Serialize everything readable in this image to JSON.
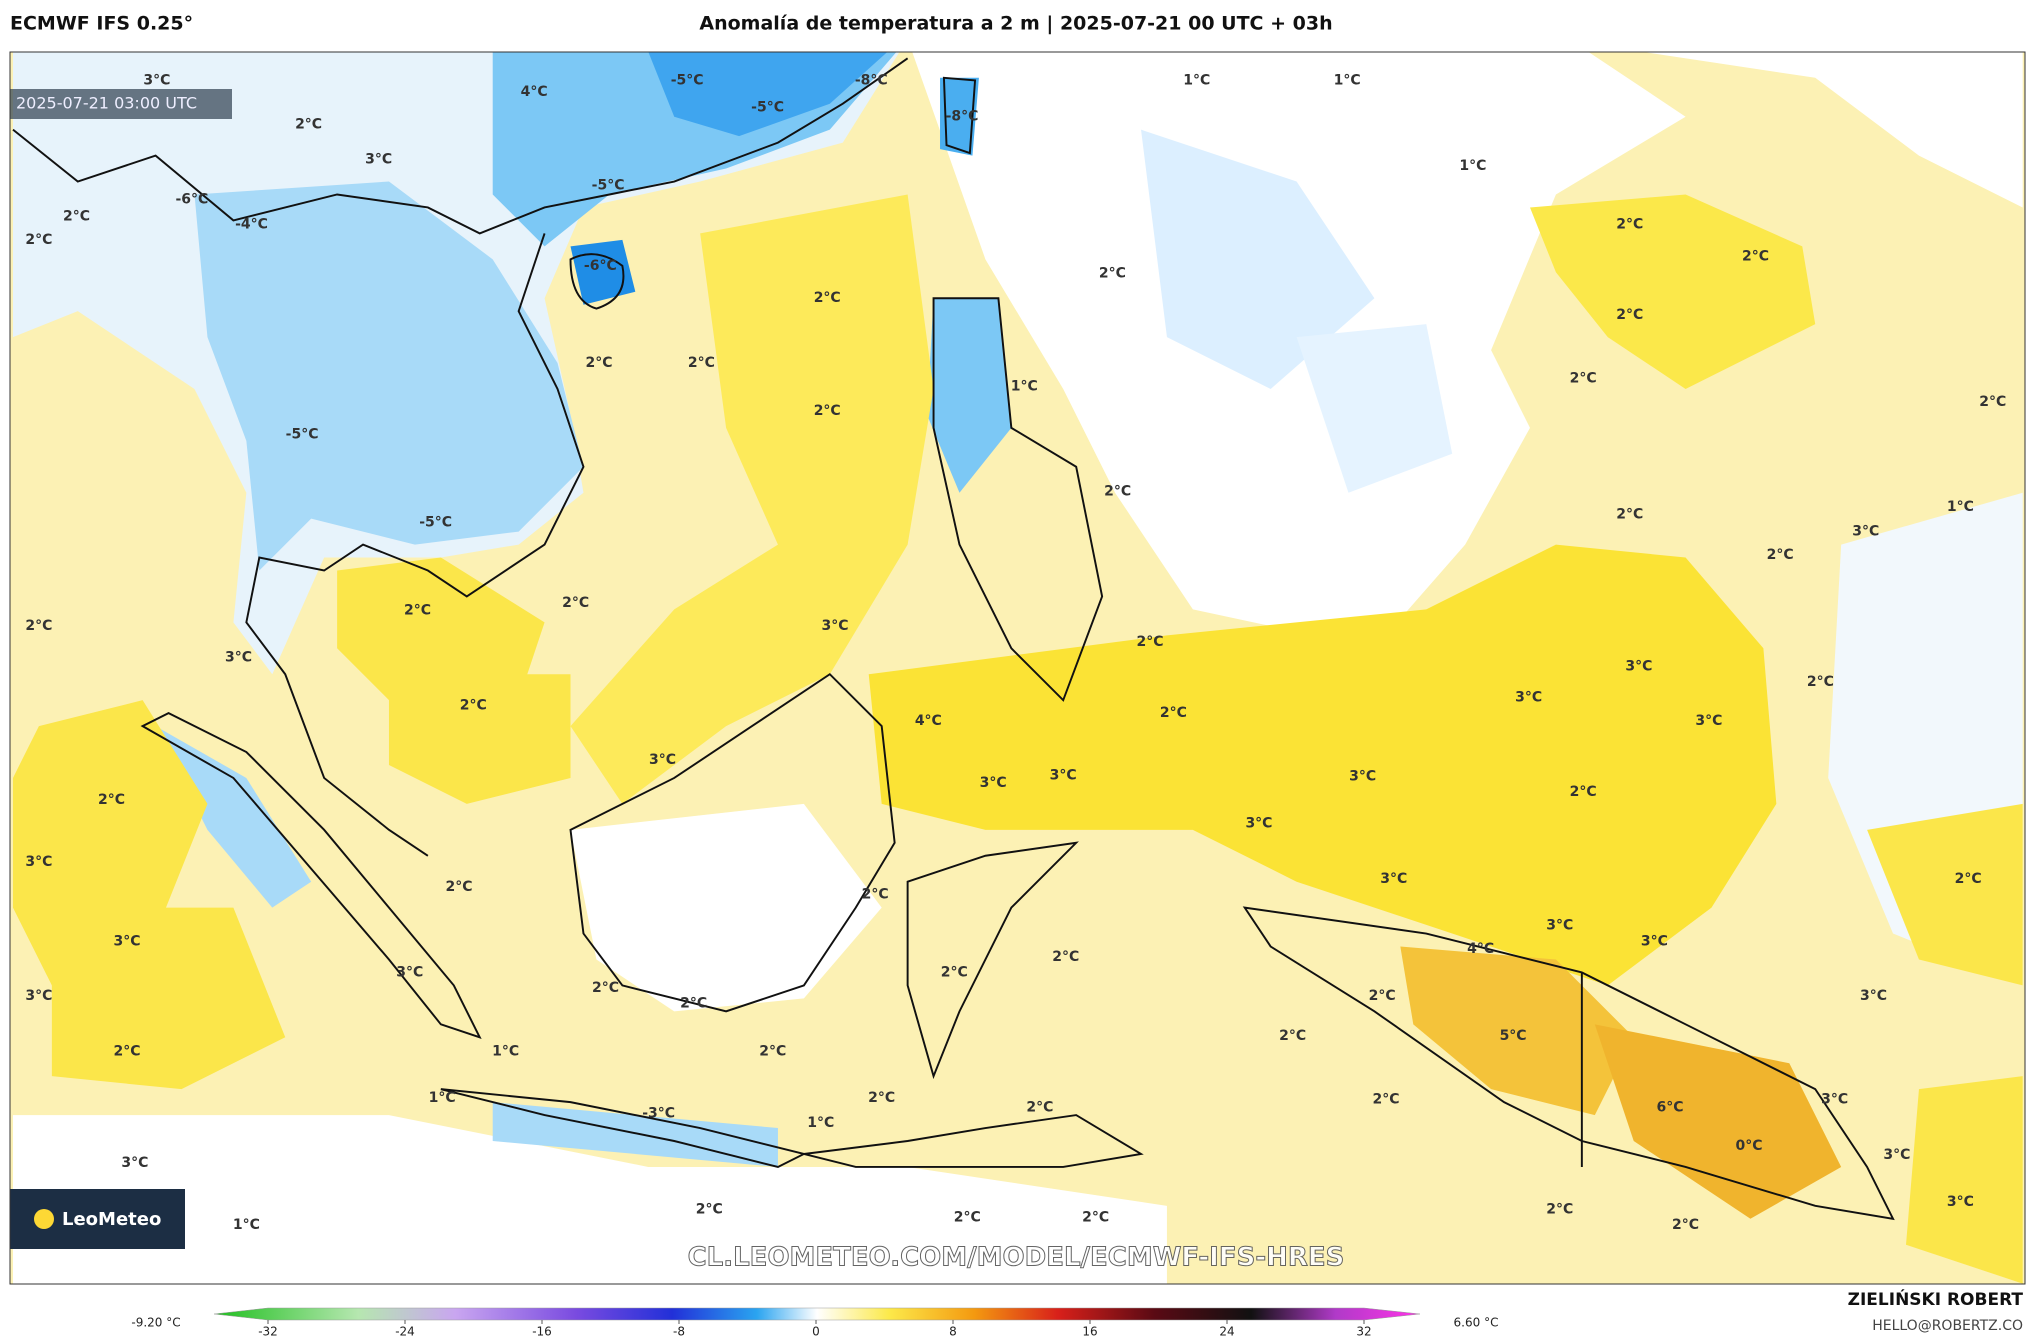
{
  "header": {
    "model": "ECMWF IFS 0.25°",
    "title": "Anomalía de temperatura a 2 m | 2025-07-21 00 UTC + 03h"
  },
  "map": {
    "timestamp": "2025-07-21 03:00 UTC",
    "logo": "LeoMeteo",
    "watermark": "CL.LEOMETEO.COM/MODEL/ECMWF-IFS-HRES",
    "labels": [
      "3°C",
      "2°C",
      "4°C",
      "3°C",
      "-5°C",
      "-5°C",
      "-8°C",
      "-8°C",
      "-5°C",
      "-6°C",
      "-4°C",
      "2°C",
      "2°C",
      "-6°C",
      "1°C",
      "1°C",
      "1°C",
      "2°C",
      "2°C",
      "2°C",
      "2°C",
      "2°C",
      "2°C",
      "2°C",
      "2°C",
      "2°C",
      "2°C",
      "1°C",
      "-5°C",
      "2°C",
      "2°C",
      "3°C",
      "1°C",
      "2°C",
      "-5°C",
      "2°C",
      "2°C",
      "2°C",
      "3°C",
      "2°C",
      "3°C",
      "2°C",
      "4°C",
      "2°C",
      "3°C",
      "3°C",
      "3°C",
      "2°C",
      "3°C",
      "3°C",
      "3°C",
      "3°C",
      "2°C",
      "2°C",
      "3°C",
      "3°C",
      "2°C",
      "2°C",
      "3°C",
      "2°C",
      "3°C",
      "3°C",
      "3°C",
      "4°C",
      "2°C",
      "3°C",
      "2°C",
      "3°C",
      "2°C",
      "2°C",
      "2°C",
      "3°C",
      "5°C",
      "2°C",
      "2°C",
      "1°C",
      "2°C",
      "1°C",
      "2°C",
      "2°C",
      "2°C",
      "3°C",
      "6°C",
      "-3°C",
      "1°C",
      "0°C",
      "3°C",
      "3°C",
      "3°C",
      "1°C",
      "2°C",
      "2°C",
      "2°C",
      "2°C",
      "2°C"
    ]
  },
  "colorbar": {
    "min_label": "-9.20 °C",
    "max_label": "6.60 °C",
    "ticks": [
      -32,
      -24,
      -16,
      -8,
      0,
      8,
      16,
      24,
      32
    ]
  },
  "credit": {
    "name": "ZIELIŃSKI ROBERT",
    "email": "HELLO@ROBERTZ.CO"
  }
}
